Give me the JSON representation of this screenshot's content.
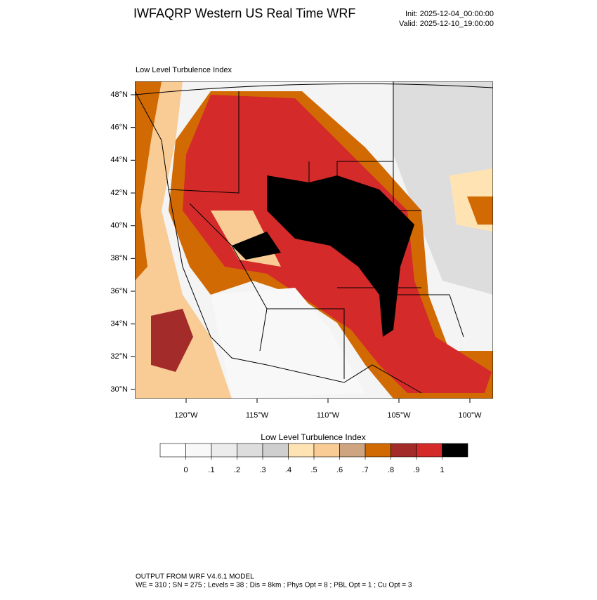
{
  "header": {
    "title": "IWFAQRP Western US Real Time WRF",
    "init": "Init: 2025-12-04_00:00:00",
    "valid": "Valid: 2025-12-10_19:00:00"
  },
  "map": {
    "title": "Low Level Turbulence Index",
    "lat_ticks": [
      {
        "value": 48,
        "label": "48°N"
      },
      {
        "value": 46,
        "label": "46°N"
      },
      {
        "value": 44,
        "label": "44°N"
      },
      {
        "value": 42,
        "label": "42°N"
      },
      {
        "value": 40,
        "label": "40°N"
      },
      {
        "value": 38,
        "label": "38°N"
      },
      {
        "value": 36,
        "label": "36°N"
      },
      {
        "value": 34,
        "label": "34°N"
      },
      {
        "value": 32,
        "label": "32°N"
      },
      {
        "value": 30,
        "label": "30°N"
      }
    ],
    "lon_ticks": [
      {
        "value": -120,
        "label": "120°W"
      },
      {
        "value": -115,
        "label": "115°W"
      },
      {
        "value": -110,
        "label": "110°W"
      },
      {
        "value": -105,
        "label": "105°W"
      },
      {
        "value": -100,
        "label": "100°W"
      }
    ]
  },
  "colorbar": {
    "title": "Low Level Turbulence Index",
    "colors": [
      "#ffffff",
      "#f8f8f8",
      "#ececec",
      "#dddddd",
      "#cfcfcf",
      "#ffe3b3",
      "#f8cc94",
      "#cfa581",
      "#d26a04",
      "#a32c2a",
      "#d42a2a",
      "#000000"
    ],
    "ticks": [
      0,
      {
        "value": 0.1,
        "label": ".1"
      },
      {
        "value": 0.2,
        "label": ".2"
      },
      {
        "value": 0.3,
        "label": ".3"
      },
      {
        "value": 0.4,
        "label": ".4"
      },
      {
        "value": 0.5,
        "label": ".5"
      },
      {
        "value": 0.6,
        "label": ".6"
      },
      {
        "value": 0.7,
        "label": ".7"
      },
      {
        "value": 0.8,
        "label": ".8"
      },
      {
        "value": 0.9,
        "label": ".9"
      },
      1
    ]
  },
  "footer": {
    "line1": "OUTPUT FROM WRF V4.6.1 MODEL",
    "line2": "WE = 310 ; SN = 275 ; Levels = 38 ; Dis = 8km ; Phys Opt = 8 ; PBL Opt = 1 ; Cu Opt = 3"
  }
}
